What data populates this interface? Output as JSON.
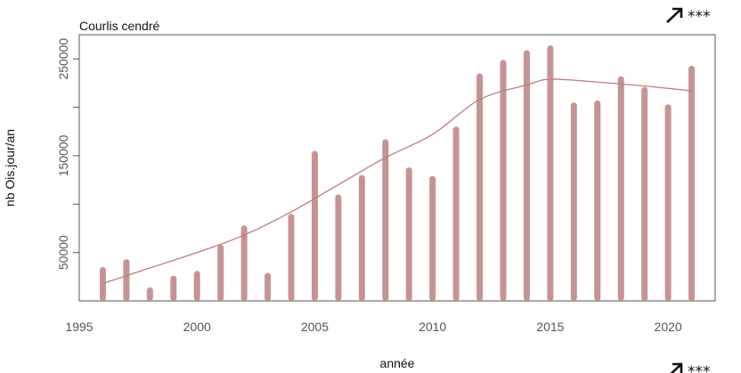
{
  "chart_data": {
    "type": "bar",
    "title": "Courlis cendré",
    "xlabel": "année",
    "ylabel": "nb Ois.jour/an",
    "xlim": [
      1995,
      2022
    ],
    "ylim": [
      0,
      275000
    ],
    "x_ticks": [
      1995,
      2000,
      2005,
      2010,
      2015,
      2020
    ],
    "y_ticks": [
      50000,
      150000,
      250000
    ],
    "y_minor_ticks": [
      100000,
      200000
    ],
    "grid": false,
    "colors": {
      "bars": "#c49494",
      "trend": "#c07b7b",
      "axis": "#555555"
    },
    "trend_indicator": {
      "icon": "arrow-up-right-icon",
      "label": "***"
    },
    "bottom_trend_indicator": {
      "icon": "arrow-up-right-icon",
      "label": "***"
    },
    "series": [
      {
        "values": [
          {
            "x": 1996,
            "y": 35000
          },
          {
            "x": 1997,
            "y": 43000
          },
          {
            "x": 1998,
            "y": 14000
          },
          {
            "x": 1999,
            "y": 26000
          },
          {
            "x": 2000,
            "y": 31000
          },
          {
            "x": 2001,
            "y": 58000
          },
          {
            "x": 2002,
            "y": 78000
          },
          {
            "x": 2003,
            "y": 29000
          },
          {
            "x": 2004,
            "y": 90000
          },
          {
            "x": 2005,
            "y": 155000
          },
          {
            "x": 2006,
            "y": 110000
          },
          {
            "x": 2007,
            "y": 130000
          },
          {
            "x": 2008,
            "y": 167000
          },
          {
            "x": 2009,
            "y": 138000
          },
          {
            "x": 2010,
            "y": 129000
          },
          {
            "x": 2011,
            "y": 180000
          },
          {
            "x": 2012,
            "y": 235000
          },
          {
            "x": 2013,
            "y": 249000
          },
          {
            "x": 2014,
            "y": 259000
          },
          {
            "x": 2015,
            "y": 264000
          },
          {
            "x": 2016,
            "y": 205000
          },
          {
            "x": 2017,
            "y": 207000
          },
          {
            "x": 2018,
            "y": 232000
          },
          {
            "x": 2019,
            "y": 221000
          },
          {
            "x": 2020,
            "y": 203000
          },
          {
            "x": 2021,
            "y": 243000
          }
        ]
      }
    ],
    "trend_line": [
      {
        "x": 1996,
        "y": 18000
      },
      {
        "x": 1998,
        "y": 34000
      },
      {
        "x": 2000,
        "y": 50000
      },
      {
        "x": 2002,
        "y": 68000
      },
      {
        "x": 2004,
        "y": 92000
      },
      {
        "x": 2006,
        "y": 120000
      },
      {
        "x": 2008,
        "y": 148000
      },
      {
        "x": 2010,
        "y": 172000
      },
      {
        "x": 2012,
        "y": 208000
      },
      {
        "x": 2014,
        "y": 223000
      },
      {
        "x": 2015,
        "y": 229000
      },
      {
        "x": 2017,
        "y": 226000
      },
      {
        "x": 2019,
        "y": 222000
      },
      {
        "x": 2021,
        "y": 217000
      }
    ]
  }
}
